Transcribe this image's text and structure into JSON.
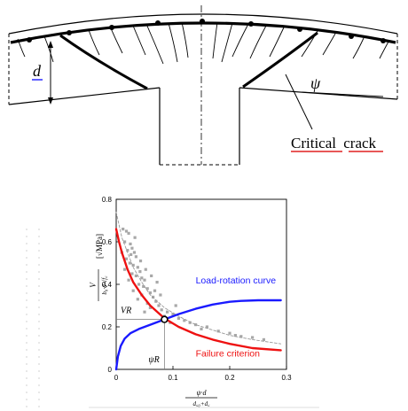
{
  "slab": {
    "d_label": "d",
    "psi_label": "ψ",
    "critical_crack_label_part1": "Critical",
    "critical_crack_label_part2": "crack",
    "underline_color": "#e02020"
  },
  "chart_data": {
    "type": "line",
    "title": "",
    "xlabel": "ψ·d / (dg0+dg)",
    "ylabel": "V / (b0·d·√fc) [√MPa]",
    "xlim": [
      0,
      0.3
    ],
    "ylim": [
      0,
      0.8
    ],
    "xticks": [
      "0",
      "0.1",
      "0.2",
      "0.3"
    ],
    "yticks": [
      "0",
      "0.2",
      "0.4",
      "0.6",
      "0.8"
    ],
    "grid": false,
    "series": [
      {
        "name": "Load-rotation curve",
        "color": "#1a1aff",
        "x": [
          0,
          0.003,
          0.008,
          0.015,
          0.025,
          0.04,
          0.06,
          0.085,
          0.11,
          0.14,
          0.17,
          0.2,
          0.22,
          0.25,
          0.29
        ],
        "y": [
          0,
          0.06,
          0.11,
          0.145,
          0.17,
          0.19,
          0.21,
          0.235,
          0.26,
          0.285,
          0.305,
          0.318,
          0.322,
          0.325,
          0.325
        ]
      },
      {
        "name": "Failure criterion",
        "color": "#ee1111",
        "x": [
          0,
          0.005,
          0.01,
          0.02,
          0.03,
          0.045,
          0.06,
          0.085,
          0.11,
          0.14,
          0.17,
          0.2,
          0.24,
          0.29
        ],
        "y": [
          0.66,
          0.6,
          0.55,
          0.47,
          0.41,
          0.35,
          0.3,
          0.24,
          0.2,
          0.165,
          0.14,
          0.12,
          0.1,
          0.09
        ]
      },
      {
        "name": "",
        "color": "#999999",
        "x": [
          0,
          0.01,
          0.02,
          0.03,
          0.045,
          0.06,
          0.085,
          0.11,
          0.14,
          0.17,
          0.2,
          0.24,
          0.29
        ],
        "y": [
          0.74,
          0.62,
          0.55,
          0.48,
          0.41,
          0.35,
          0.29,
          0.25,
          0.21,
          0.185,
          0.16,
          0.14,
          0.12
        ]
      }
    ],
    "scatter": {
      "color": "#a8a8a8",
      "points": [
        [
          0.012,
          0.66
        ],
        [
          0.018,
          0.65
        ],
        [
          0.022,
          0.64
        ],
        [
          0.015,
          0.6
        ],
        [
          0.025,
          0.59
        ],
        [
          0.028,
          0.57
        ],
        [
          0.02,
          0.56
        ],
        [
          0.032,
          0.55
        ],
        [
          0.035,
          0.53
        ],
        [
          0.018,
          0.52
        ],
        [
          0.024,
          0.5
        ],
        [
          0.03,
          0.49
        ],
        [
          0.038,
          0.48
        ],
        [
          0.042,
          0.46
        ],
        [
          0.028,
          0.45
        ],
        [
          0.035,
          0.44
        ],
        [
          0.045,
          0.43
        ],
        [
          0.05,
          0.42
        ],
        [
          0.022,
          0.42
        ],
        [
          0.04,
          0.4
        ],
        [
          0.048,
          0.39
        ],
        [
          0.055,
          0.38
        ],
        [
          0.03,
          0.37
        ],
        [
          0.06,
          0.36
        ],
        [
          0.045,
          0.35
        ],
        [
          0.065,
          0.34
        ],
        [
          0.038,
          0.33
        ],
        [
          0.07,
          0.32
        ],
        [
          0.055,
          0.31
        ],
        [
          0.075,
          0.3
        ],
        [
          0.06,
          0.29
        ],
        [
          0.08,
          0.28
        ],
        [
          0.05,
          0.27
        ],
        [
          0.09,
          0.27
        ],
        [
          0.1,
          0.26
        ],
        [
          0.085,
          0.25
        ],
        [
          0.11,
          0.24
        ],
        [
          0.12,
          0.23
        ],
        [
          0.095,
          0.22
        ],
        [
          0.13,
          0.22
        ],
        [
          0.14,
          0.21
        ],
        [
          0.16,
          0.2
        ],
        [
          0.15,
          0.19
        ],
        [
          0.18,
          0.18
        ],
        [
          0.2,
          0.17
        ],
        [
          0.21,
          0.16
        ],
        [
          0.22,
          0.155
        ],
        [
          0.24,
          0.15
        ],
        [
          0.26,
          0.14
        ],
        [
          0.015,
          0.47
        ],
        [
          0.01,
          0.55
        ],
        [
          0.033,
          0.62
        ],
        [
          0.026,
          0.54
        ],
        [
          0.043,
          0.51
        ],
        [
          0.052,
          0.47
        ],
        [
          0.062,
          0.44
        ],
        [
          0.072,
          0.41
        ],
        [
          0.068,
          0.37
        ],
        [
          0.078,
          0.35
        ],
        [
          0.105,
          0.3
        ]
      ]
    },
    "intersection": {
      "x": 0.085,
      "y": 0.235,
      "x_label": "ψR",
      "y_label": "VR"
    },
    "annotations": [
      {
        "text": "Load-rotation curve",
        "color": "#1a1aff",
        "x": 0.14,
        "y": 0.405
      },
      {
        "text": "Failure criterion",
        "color": "#ee1111",
        "x": 0.14,
        "y": 0.06
      }
    ]
  }
}
